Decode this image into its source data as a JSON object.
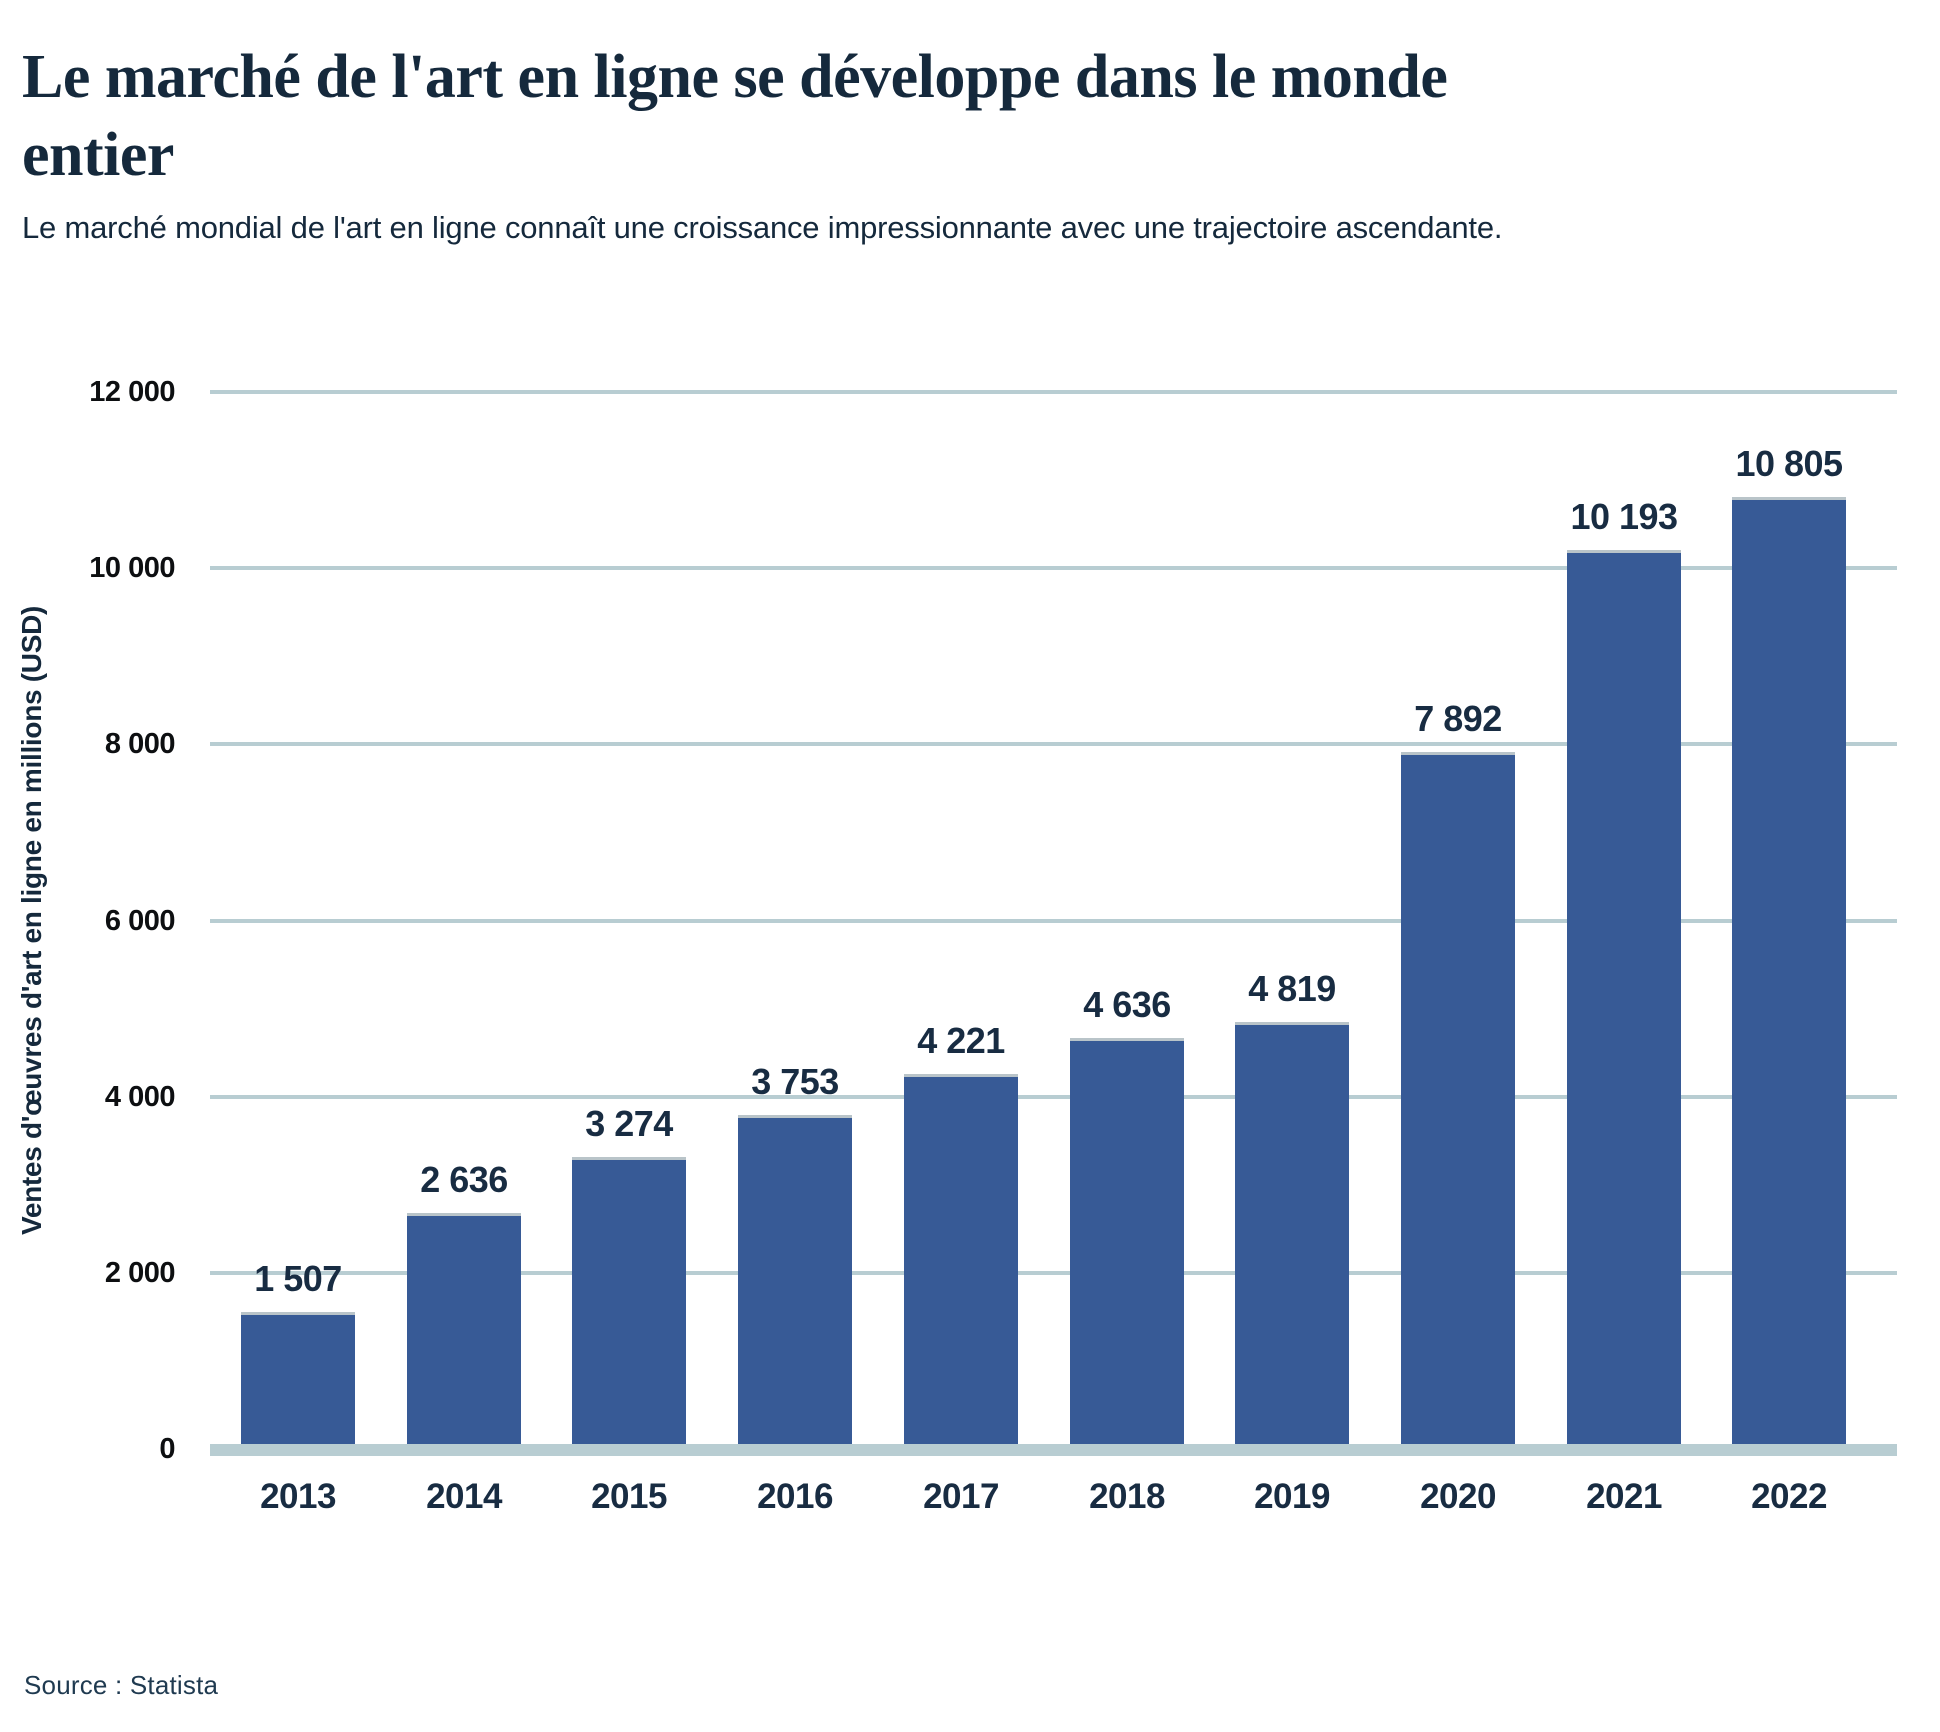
{
  "header": {
    "title": "Le marché de l'art en ligne se développe dans le monde entier",
    "title_lines": [
      "Le marché de l'art en ligne se développe dans le monde",
      "entier"
    ],
    "subtitle": "Le marché mondial de l'art en ligne connaît une croissance impressionnante avec une trajectoire ascendante."
  },
  "footer": {
    "source": "Source : Statista"
  },
  "chart_data": {
    "type": "bar",
    "title": "Le marché de l'art en ligne se développe dans le monde entier",
    "subtitle": "Le marché mondial de l'art en ligne connaît une croissance impressionnante avec une trajectoire ascendante.",
    "categories": [
      "2013",
      "2014",
      "2015",
      "2016",
      "2017",
      "2018",
      "2019",
      "2020",
      "2021",
      "2022"
    ],
    "values": [
      1507,
      2636,
      3274,
      3753,
      4221,
      4636,
      4819,
      7892,
      10193,
      10805
    ],
    "value_labels": [
      "1 507",
      "2 636",
      "3 274",
      "3 753",
      "4 221",
      "4 636",
      "4 819",
      "7 892",
      "10 193",
      "10 805"
    ],
    "xlabel": "",
    "ylabel": "Ventes d'œuvres d'art en ligne en millions (USD)",
    "ylim": [
      0,
      12000
    ],
    "yticks": {
      "values": [
        12000,
        10000,
        8000,
        6000,
        4000,
        2000,
        0
      ],
      "labels": [
        "12 000",
        "10 000",
        "8 000",
        "6 000",
        "4 000",
        "2 000",
        "0"
      ]
    },
    "grid": true,
    "legend": false,
    "colors": {
      "bar": "#375A96",
      "gridline": "#B8CDD2",
      "tick_label": "#0D0F11",
      "value_label": "#182C42",
      "title": "#15293C"
    },
    "source": "Source : Statista"
  }
}
